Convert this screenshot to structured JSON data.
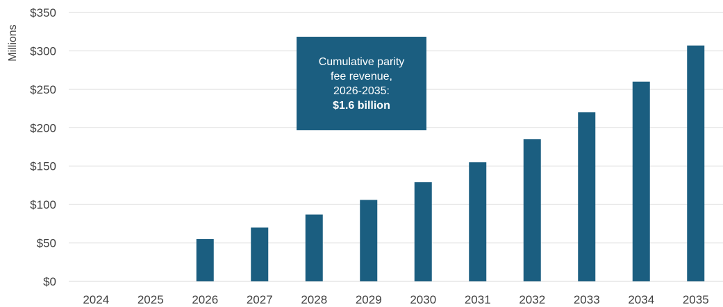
{
  "chart_data": {
    "type": "bar",
    "ylabel": "Millions",
    "ylim": [
      0,
      350
    ],
    "yticks": [
      0,
      50,
      100,
      150,
      200,
      250,
      300,
      350
    ],
    "ytick_labels": [
      "$0",
      "$50",
      "$100",
      "$150",
      "$200",
      "$250",
      "$300",
      "$350"
    ],
    "categories": [
      "2024",
      "2025",
      "2026",
      "2027",
      "2028",
      "2029",
      "2030",
      "2031",
      "2032",
      "2033",
      "2034",
      "2035"
    ],
    "values": [
      0,
      0,
      55,
      70,
      87,
      106,
      129,
      155,
      185,
      220,
      260,
      307
    ],
    "bar_color": "#1b5e80",
    "grid": true,
    "annotation": {
      "lines": [
        "Cumulative parity",
        "fee revenue,",
        "2026-2035:"
      ],
      "bold_line": "$1.6 billion"
    }
  }
}
